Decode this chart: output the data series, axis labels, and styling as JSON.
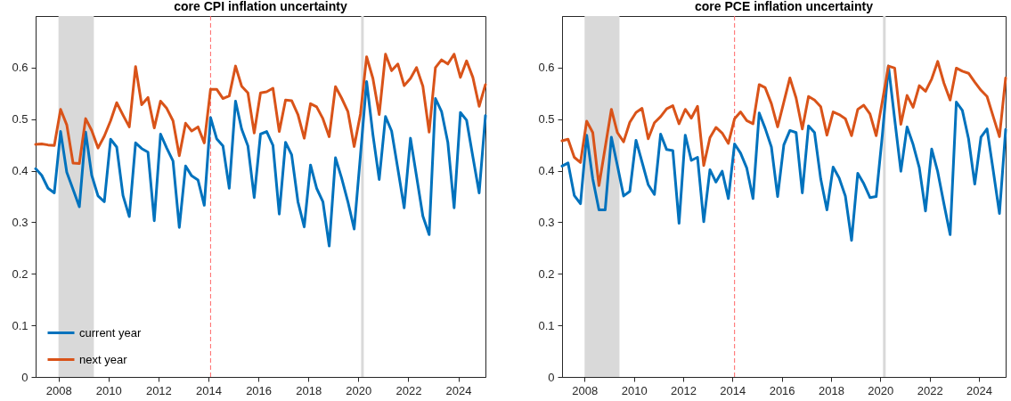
{
  "chart_data": [
    {
      "type": "line",
      "title": "core CPI inflation uncertainty",
      "legend": "bottom left",
      "x": [
        "2007-02",
        "2007-05",
        "2007-08",
        "2007-11",
        "2008-02",
        "2008-05",
        "2008-08",
        "2008-11",
        "2009-02",
        "2009-05",
        "2009-08",
        "2009-11",
        "2010-02",
        "2010-05",
        "2010-08",
        "2010-11",
        "2011-02",
        "2011-05",
        "2011-08",
        "2011-11",
        "2012-02",
        "2012-05",
        "2012-08",
        "2012-11",
        "2013-02",
        "2013-05",
        "2013-08",
        "2013-11",
        "2014-02",
        "2014-05",
        "2014-08",
        "2014-11",
        "2015-02",
        "2015-05",
        "2015-08",
        "2015-11",
        "2016-02",
        "2016-05",
        "2016-08",
        "2016-11",
        "2017-02",
        "2017-05",
        "2017-08",
        "2017-11",
        "2018-02",
        "2018-05",
        "2018-08",
        "2018-11",
        "2019-02",
        "2019-05",
        "2019-08",
        "2019-11",
        "2020-02",
        "2020-05",
        "2020-08",
        "2020-11",
        "2021-02",
        "2021-05",
        "2021-08",
        "2021-11",
        "2022-02",
        "2022-05",
        "2022-08",
        "2022-11",
        "2023-02",
        "2023-05",
        "2023-08",
        "2023-11",
        "2024-02",
        "2024-05",
        "2024-08",
        "2024-11",
        "2025-02"
      ],
      "xlim": [
        "2007-02",
        "2025-02"
      ],
      "xticks": [
        "2008",
        "2010",
        "2012",
        "2014",
        "2016",
        "2018",
        "2020",
        "2022",
        "2024"
      ],
      "ylim": [
        0,
        0.7
      ],
      "yticks": [
        0,
        0.1,
        0.2,
        0.3,
        0.4,
        0.5,
        0.6
      ],
      "bands": [
        {
          "axis": "x",
          "from": "2008-01",
          "to": "2009-06",
          "color": "#d9d9d9"
        }
      ],
      "ref_lines": [
        {
          "axis": "x",
          "value": "2014-02",
          "color": "#ff6666",
          "line_style": "dashed"
        },
        {
          "axis": "x",
          "value": "2020-03",
          "color": "#d9d9d9",
          "line_style": "solid"
        }
      ],
      "series": [
        {
          "name": "current year",
          "color": "#0072bd",
          "values": [
            0.404,
            0.391,
            0.366,
            0.357,
            0.476,
            0.397,
            0.364,
            0.33,
            0.475,
            0.391,
            0.351,
            0.34,
            0.461,
            0.446,
            0.352,
            0.311,
            0.454,
            0.443,
            0.436,
            0.303,
            0.471,
            0.444,
            0.419,
            0.29,
            0.409,
            0.39,
            0.382,
            0.333,
            0.503,
            0.462,
            0.448,
            0.366,
            0.535,
            0.481,
            0.448,
            0.348,
            0.471,
            0.476,
            0.449,
            0.316,
            0.455,
            0.431,
            0.34,
            0.291,
            0.411,
            0.366,
            0.34,
            0.254,
            0.425,
            0.386,
            0.34,
            0.287,
            0.43,
            0.573,
            0.47,
            0.383,
            0.505,
            0.477,
            0.403,
            0.328,
            0.463,
            0.389,
            0.312,
            0.276,
            0.54,
            0.515,
            0.455,
            0.328,
            0.513,
            0.498,
            0.427,
            0.357,
            0.507
          ]
        },
        {
          "name": "next year",
          "color": "#d95319",
          "values": [
            0.451,
            0.452,
            0.45,
            0.449,
            0.519,
            0.489,
            0.415,
            0.414,
            0.501,
            0.478,
            0.444,
            0.467,
            0.497,
            0.532,
            0.508,
            0.485,
            0.602,
            0.528,
            0.542,
            0.483,
            0.535,
            0.521,
            0.497,
            0.429,
            0.492,
            0.477,
            0.485,
            0.454,
            0.558,
            0.558,
            0.54,
            0.545,
            0.603,
            0.564,
            0.551,
            0.473,
            0.551,
            0.553,
            0.56,
            0.476,
            0.537,
            0.536,
            0.509,
            0.463,
            0.53,
            0.524,
            0.501,
            0.466,
            0.563,
            0.541,
            0.515,
            0.447,
            0.51,
            0.621,
            0.579,
            0.509,
            0.626,
            0.594,
            0.607,
            0.565,
            0.579,
            0.6,
            0.564,
            0.475,
            0.6,
            0.615,
            0.607,
            0.626,
            0.581,
            0.613,
            0.581,
            0.525,
            0.567
          ]
        }
      ]
    },
    {
      "type": "line",
      "title": "core PCE inflation uncertainty",
      "legend": "bottom left",
      "x": [
        "2007-02",
        "2007-05",
        "2007-08",
        "2007-11",
        "2008-02",
        "2008-05",
        "2008-08",
        "2008-11",
        "2009-02",
        "2009-05",
        "2009-08",
        "2009-11",
        "2010-02",
        "2010-05",
        "2010-08",
        "2010-11",
        "2011-02",
        "2011-05",
        "2011-08",
        "2011-11",
        "2012-02",
        "2012-05",
        "2012-08",
        "2012-11",
        "2013-02",
        "2013-05",
        "2013-08",
        "2013-11",
        "2014-02",
        "2014-05",
        "2014-08",
        "2014-11",
        "2015-02",
        "2015-05",
        "2015-08",
        "2015-11",
        "2016-02",
        "2016-05",
        "2016-08",
        "2016-11",
        "2017-02",
        "2017-05",
        "2017-08",
        "2017-11",
        "2018-02",
        "2018-05",
        "2018-08",
        "2018-11",
        "2019-02",
        "2019-05",
        "2019-08",
        "2019-11",
        "2020-02",
        "2020-05",
        "2020-08",
        "2020-11",
        "2021-02",
        "2021-05",
        "2021-08",
        "2021-11",
        "2022-02",
        "2022-05",
        "2022-08",
        "2022-11",
        "2023-02",
        "2023-05",
        "2023-08",
        "2023-11",
        "2024-02",
        "2024-05",
        "2024-08",
        "2024-11",
        "2025-02"
      ],
      "xlim": [
        "2007-02",
        "2025-02"
      ],
      "xticks": [
        "2008",
        "2010",
        "2012",
        "2014",
        "2016",
        "2018",
        "2020",
        "2022",
        "2024"
      ],
      "ylim": [
        0,
        0.7
      ],
      "yticks": [
        0,
        0.1,
        0.2,
        0.3,
        0.4,
        0.5,
        0.6
      ],
      "bands": [
        {
          "axis": "x",
          "from": "2008-01",
          "to": "2009-06",
          "color": "#d9d9d9"
        }
      ],
      "ref_lines": [
        {
          "axis": "x",
          "value": "2014-02",
          "color": "#ff6666",
          "line_style": "dashed"
        },
        {
          "axis": "x",
          "value": "2020-03",
          "color": "#d9d9d9",
          "line_style": "solid"
        }
      ],
      "series": [
        {
          "name": "current year",
          "color": "#0072bd",
          "values": [
            0.409,
            0.415,
            0.352,
            0.336,
            0.469,
            0.384,
            0.324,
            0.324,
            0.465,
            0.41,
            0.351,
            0.36,
            0.459,
            0.417,
            0.373,
            0.354,
            0.471,
            0.441,
            0.439,
            0.298,
            0.469,
            0.42,
            0.426,
            0.301,
            0.402,
            0.378,
            0.399,
            0.346,
            0.452,
            0.434,
            0.405,
            0.346,
            0.512,
            0.482,
            0.446,
            0.35,
            0.45,
            0.478,
            0.474,
            0.357,
            0.487,
            0.474,
            0.384,
            0.324,
            0.407,
            0.386,
            0.351,
            0.265,
            0.395,
            0.375,
            0.348,
            0.35,
            0.47,
            0.603,
            0.5,
            0.399,
            0.485,
            0.451,
            0.406,
            0.322,
            0.442,
            0.398,
            0.336,
            0.276,
            0.533,
            0.517,
            0.462,
            0.374,
            0.465,
            0.481,
            0.4,
            0.317,
            0.48
          ]
        },
        {
          "name": "next year",
          "color": "#d95319",
          "values": [
            0.458,
            0.461,
            0.426,
            0.416,
            0.496,
            0.474,
            0.371,
            0.445,
            0.519,
            0.474,
            0.456,
            0.494,
            0.513,
            0.521,
            0.462,
            0.493,
            0.505,
            0.52,
            0.526,
            0.491,
            0.519,
            0.502,
            0.525,
            0.41,
            0.464,
            0.484,
            0.473,
            0.453,
            0.501,
            0.514,
            0.497,
            0.491,
            0.567,
            0.561,
            0.53,
            0.485,
            0.533,
            0.58,
            0.541,
            0.481,
            0.544,
            0.537,
            0.524,
            0.469,
            0.514,
            0.509,
            0.501,
            0.468,
            0.519,
            0.527,
            0.51,
            0.468,
            0.535,
            0.603,
            0.599,
            0.49,
            0.546,
            0.523,
            0.565,
            0.554,
            0.578,
            0.612,
            0.57,
            0.537,
            0.599,
            0.593,
            0.589,
            0.572,
            0.556,
            0.544,
            0.505,
            0.466,
            0.58
          ]
        }
      ]
    }
  ]
}
